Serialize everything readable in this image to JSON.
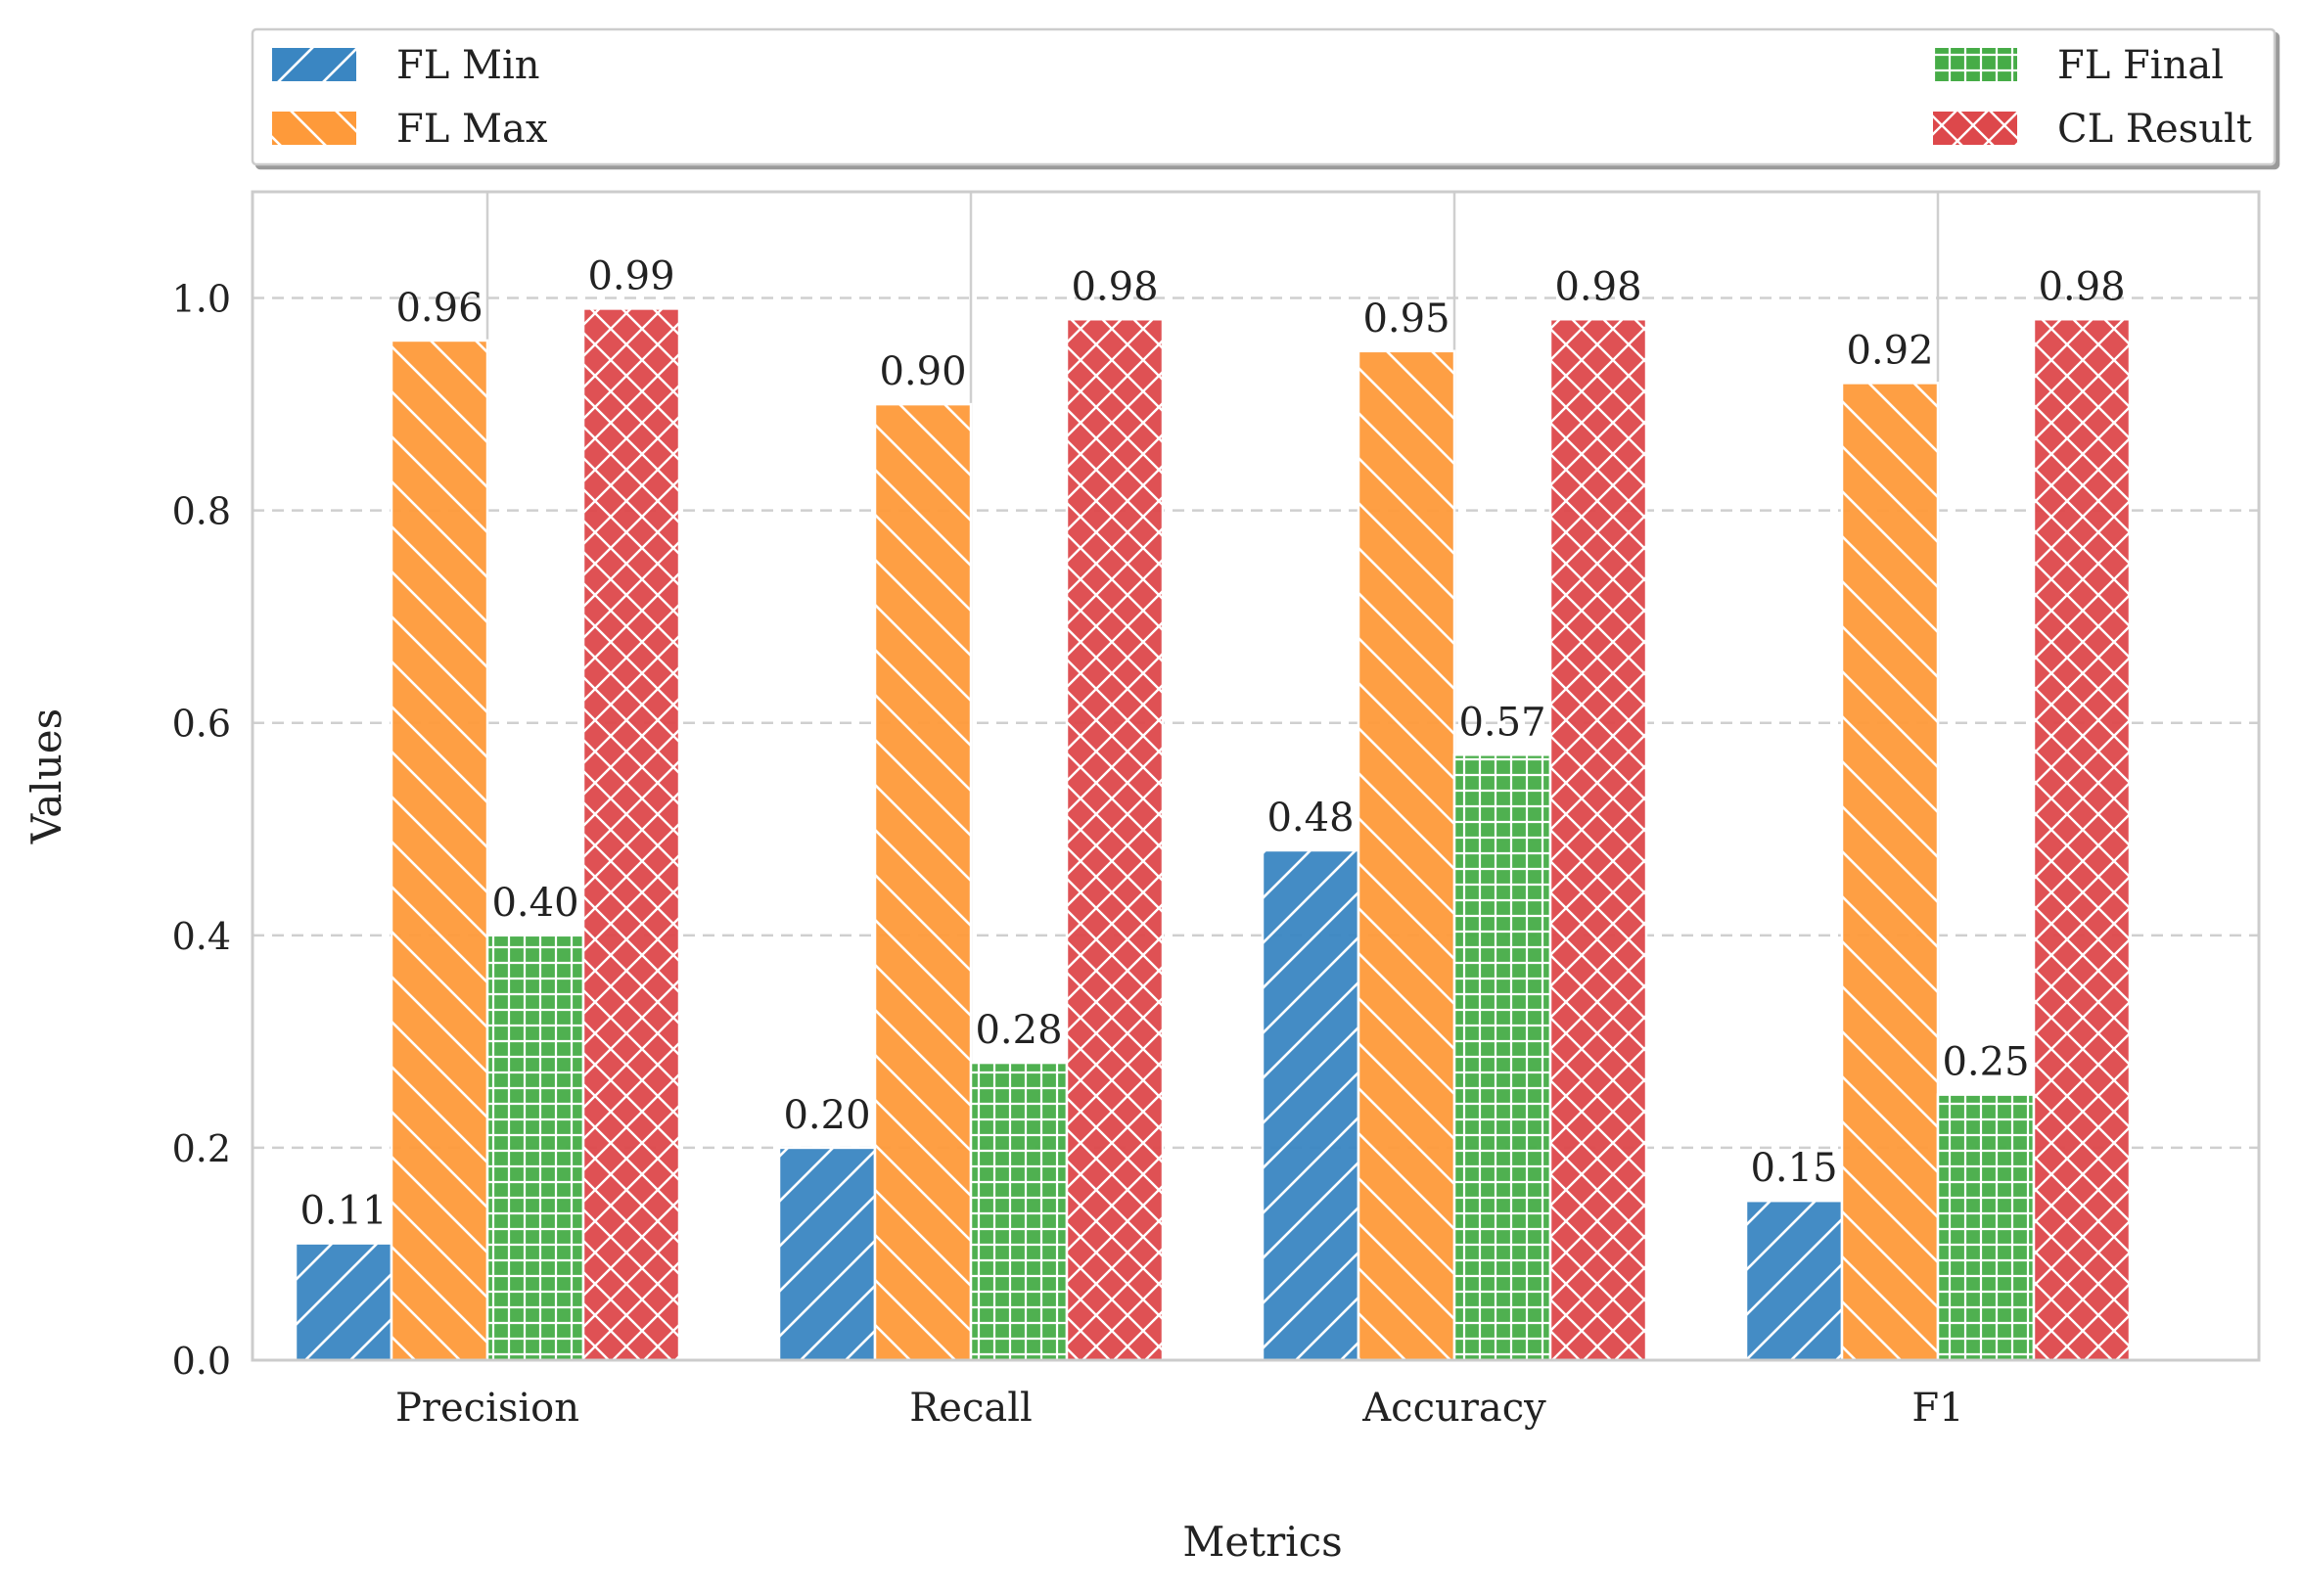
{
  "chart_data": {
    "type": "bar",
    "categories": [
      "Precision",
      "Recall",
      "Accuracy",
      "F1"
    ],
    "series": [
      {
        "name": "FL Min",
        "values": [
          0.11,
          0.2,
          0.48,
          0.15
        ],
        "labels": [
          "0.11",
          "0.20",
          "0.48",
          "0.15"
        ],
        "color": "#3a86c2",
        "hatch": "forward-diagonal"
      },
      {
        "name": "FL Max",
        "values": [
          0.96,
          0.9,
          0.95,
          0.92
        ],
        "labels": [
          "0.96",
          "0.90",
          "0.95",
          "0.92"
        ],
        "color": "#fe9a3a",
        "hatch": "back-diagonal"
      },
      {
        "name": "FL Final",
        "values": [
          0.4,
          0.28,
          0.57,
          0.25
        ],
        "labels": [
          "0.40",
          "0.28",
          "0.57",
          "0.25"
        ],
        "color": "#46ac47",
        "hatch": "grid"
      },
      {
        "name": "CL Result",
        "values": [
          0.99,
          0.98,
          0.98,
          0.98
        ],
        "labels": [
          "0.99",
          "0.98",
          "0.98",
          "0.98"
        ],
        "color": "#dd484b",
        "hatch": "crosshatch"
      }
    ],
    "title": "",
    "xlabel": "Metrics",
    "ylabel": "Values",
    "ylim": [
      0,
      1.1
    ],
    "yticks": [
      "0.0",
      "0.2",
      "0.4",
      "0.6",
      "0.8",
      "1.0"
    ],
    "grid": "horizontal-dashed",
    "legend": "top-outside"
  }
}
